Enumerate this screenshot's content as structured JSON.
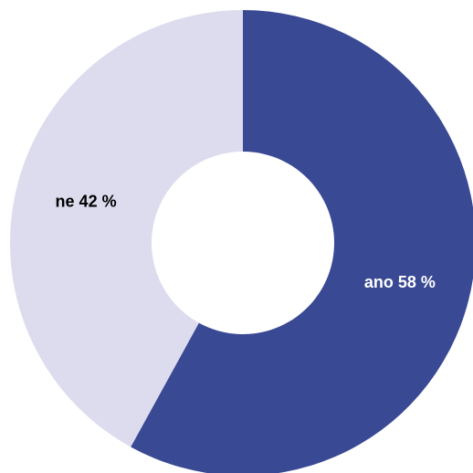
{
  "chart_data": {
    "type": "donut",
    "categories": [
      "ano",
      "ne"
    ],
    "values": [
      58,
      42
    ],
    "value_labels": [
      "ano 58 %",
      "ne 42 %"
    ],
    "colors": [
      "#394994",
      "#dcdcee"
    ],
    "label_colors": [
      "#ffffff",
      "#000000"
    ]
  }
}
